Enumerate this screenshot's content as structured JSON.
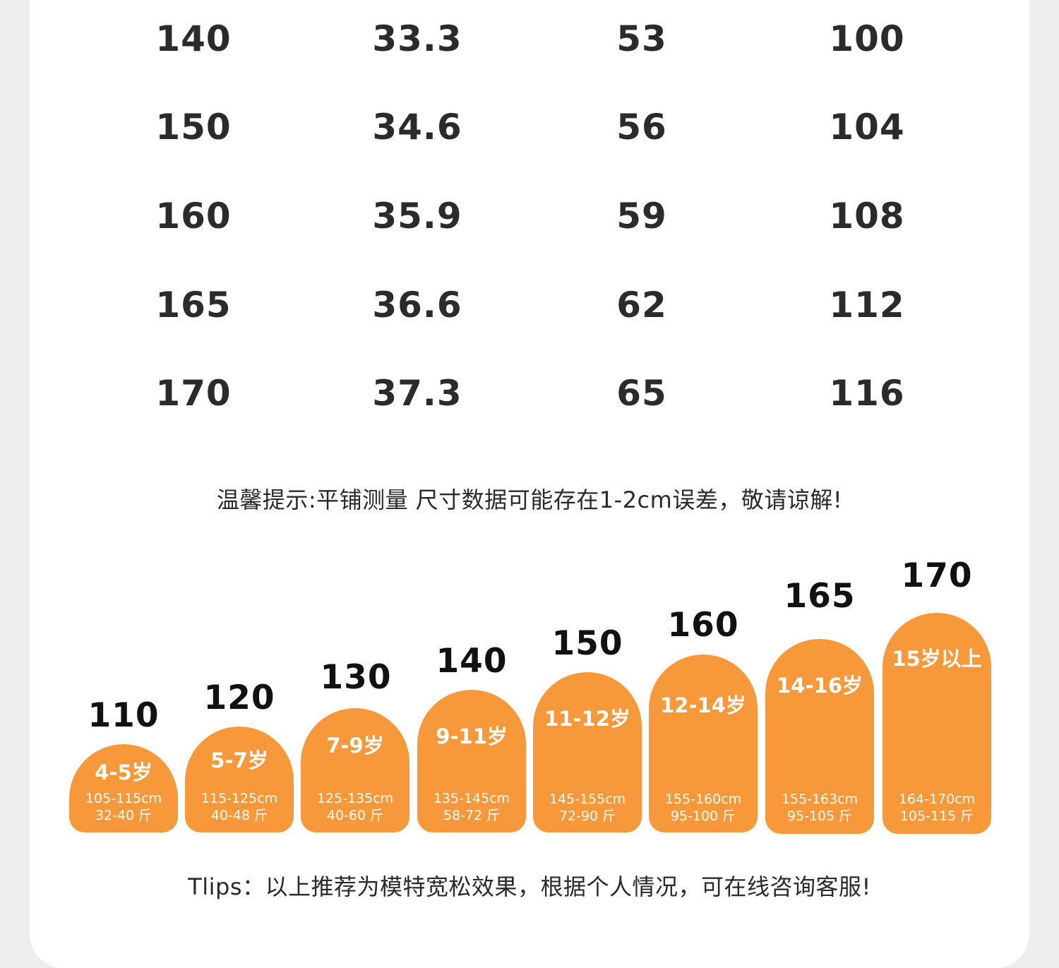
{
  "size_table": {
    "rows": [
      [
        "140",
        "33.3",
        "53",
        "100"
      ],
      [
        "150",
        "34.6",
        "56",
        "104"
      ],
      [
        "160",
        "35.9",
        "59",
        "108"
      ],
      [
        "165",
        "36.6",
        "62",
        "112"
      ],
      [
        "170",
        "37.3",
        "65",
        "116"
      ]
    ]
  },
  "notice": "温馨提示:平铺测量 尺寸数据可能存在1-2cm误差，敬请谅解!",
  "age_guide": [
    {
      "height": "110",
      "age": "4-5岁",
      "cm": "105-115cm",
      "jin": "32-40 斤"
    },
    {
      "height": "120",
      "age": "5-7岁",
      "cm": "115-125cm",
      "jin": "40-48 斤"
    },
    {
      "height": "130",
      "age": "7-9岁",
      "cm": "125-135cm",
      "jin": "40-60 斤"
    },
    {
      "height": "140",
      "age": "9-11岁",
      "cm": "135-145cm",
      "jin": "58-72 斤"
    },
    {
      "height": "150",
      "age": "11-12岁",
      "cm": "145-155cm",
      "jin": "72-90 斤"
    },
    {
      "height": "160",
      "age": "12-14岁",
      "cm": "155-160cm",
      "jin": "95-100 斤"
    },
    {
      "height": "165",
      "age": "14-16岁",
      "cm": "155-163cm",
      "jin": "95-105 斤"
    },
    {
      "height": "170",
      "age": "15岁以上",
      "cm": "164-170cm",
      "jin": "105-115 斤"
    }
  ],
  "tips": "Tlips：以上推荐为模特宽松效果，根据个人情况，可在线咨询客服!",
  "colors": {
    "accent": "#f7993a",
    "card": "#ffffff",
    "background": "#ededed",
    "text": "#2b2b2b"
  }
}
